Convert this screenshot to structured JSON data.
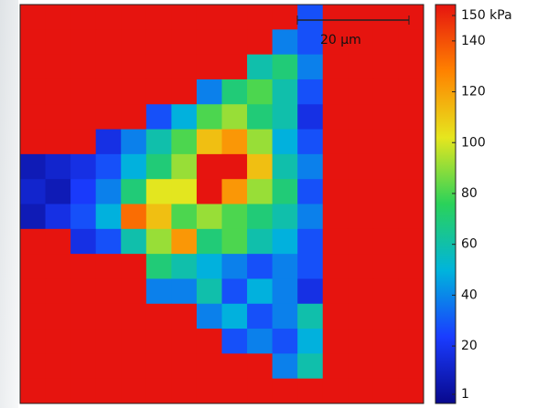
{
  "chart_data": {
    "type": "heatmap",
    "scale_bar": "20 µm",
    "colormap": [
      "#08088c",
      "#1a3cff",
      "#00b4dc",
      "#2ad25a",
      "#e6e61e",
      "#ff8200",
      "#e6140f"
    ],
    "clim": [
      1,
      150
    ],
    "yticks": [
      1,
      20,
      40,
      60,
      80,
      100,
      120,
      140,
      {
        "value": 150,
        "label": "150 kPa"
      }
    ],
    "z": [
      [
        150,
        150,
        150,
        150,
        150,
        150,
        150,
        150,
        150,
        150,
        150,
        30,
        150,
        150,
        150,
        150
      ],
      [
        150,
        150,
        150,
        150,
        150,
        150,
        150,
        150,
        150,
        150,
        40,
        30,
        150,
        150,
        150,
        150
      ],
      [
        150,
        150,
        150,
        150,
        150,
        150,
        150,
        150,
        150,
        60,
        70,
        40,
        150,
        150,
        150,
        150
      ],
      [
        150,
        150,
        150,
        150,
        150,
        150,
        150,
        40,
        70,
        80,
        60,
        30,
        150,
        150,
        150,
        150
      ],
      [
        150,
        150,
        150,
        150,
        150,
        30,
        50,
        80,
        90,
        70,
        60,
        20,
        150,
        150,
        150,
        150
      ],
      [
        150,
        150,
        150,
        20,
        40,
        60,
        80,
        110,
        120,
        90,
        50,
        30,
        150,
        150,
        150,
        150
      ],
      [
        10,
        15,
        20,
        30,
        50,
        70,
        90,
        150,
        150,
        110,
        60,
        40,
        150,
        150,
        150,
        150
      ],
      [
        15,
        10,
        25,
        40,
        70,
        100,
        100,
        150,
        120,
        90,
        70,
        30,
        150,
        150,
        150,
        150
      ],
      [
        10,
        20,
        30,
        50,
        130,
        110,
        80,
        90,
        80,
        70,
        60,
        40,
        150,
        150,
        150,
        150
      ],
      [
        150,
        150,
        20,
        30,
        60,
        90,
        120,
        70,
        80,
        60,
        50,
        30,
        150,
        150,
        150,
        150
      ],
      [
        150,
        150,
        150,
        150,
        150,
        70,
        60,
        50,
        40,
        30,
        40,
        30,
        150,
        150,
        150,
        150
      ],
      [
        150,
        150,
        150,
        150,
        150,
        40,
        40,
        60,
        30,
        50,
        40,
        20,
        150,
        150,
        150,
        150
      ],
      [
        150,
        150,
        150,
        150,
        150,
        150,
        150,
        40,
        50,
        30,
        40,
        60,
        150,
        150,
        150,
        150
      ],
      [
        150,
        150,
        150,
        150,
        150,
        150,
        150,
        150,
        30,
        40,
        30,
        50,
        150,
        150,
        150,
        150
      ],
      [
        150,
        150,
        150,
        150,
        150,
        150,
        150,
        150,
        150,
        150,
        40,
        60,
        150,
        150,
        150,
        150
      ],
      [
        150,
        150,
        150,
        150,
        150,
        150,
        150,
        150,
        150,
        150,
        150,
        150,
        150,
        150,
        150,
        150
      ]
    ]
  }
}
